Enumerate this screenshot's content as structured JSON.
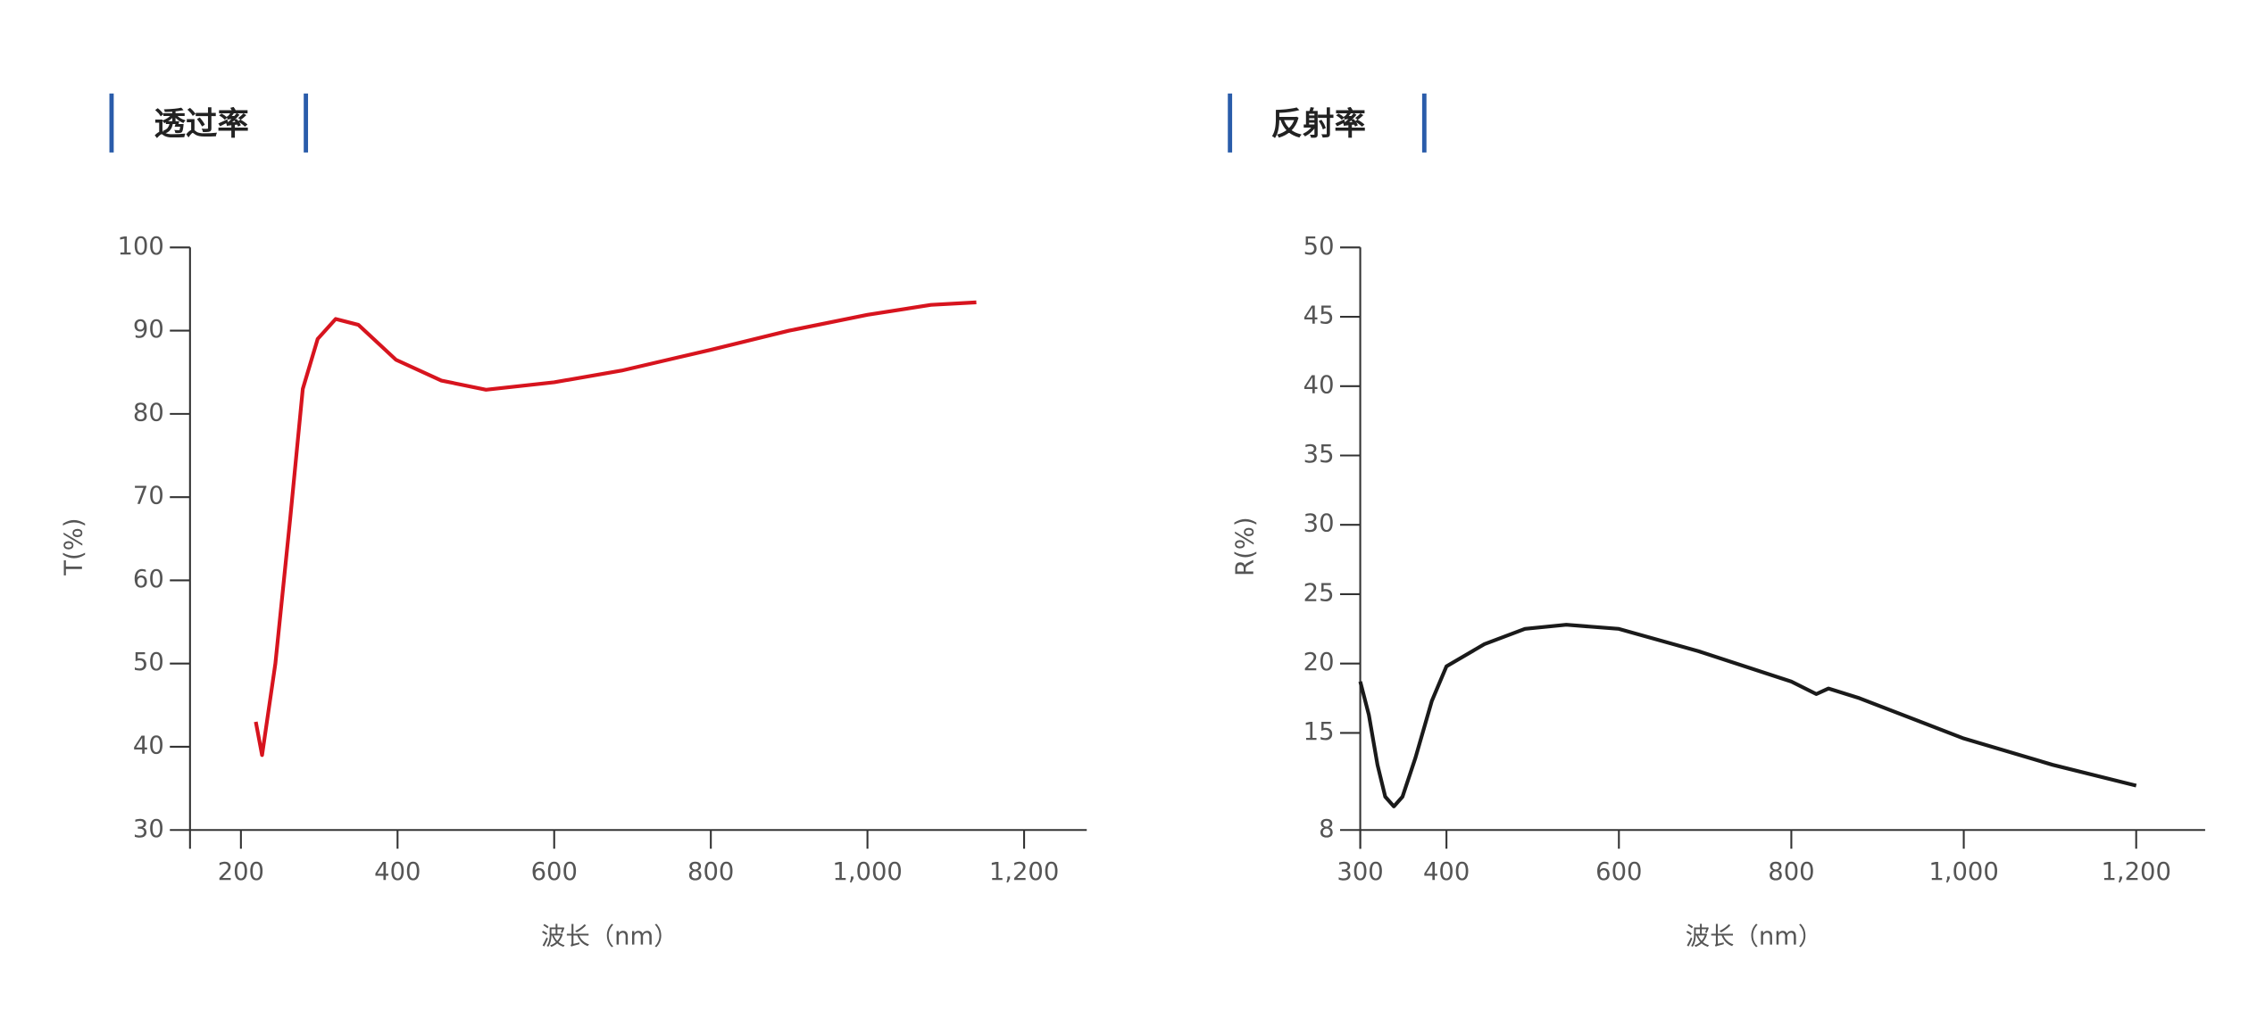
{
  "chart_data": [
    {
      "type": "line",
      "title": "透过率",
      "ylabel": "T(%)",
      "xlabel": "波长（nm）",
      "color": "#d7141e",
      "x": [
        219,
        227,
        244,
        263,
        279,
        298,
        321,
        350,
        398,
        456,
        513,
        600,
        686,
        800,
        900,
        1000,
        1081,
        1139
      ],
      "values": [
        43,
        39,
        50,
        67.5,
        83,
        89,
        91.4,
        90.7,
        86.5,
        84,
        82.9,
        83.8,
        85.2,
        87.7,
        90,
        91.9,
        93.1,
        93.4
      ],
      "xlim": [
        135,
        1280
      ],
      "ylim": [
        30,
        100
      ],
      "xticks": [
        200,
        400,
        600,
        800,
        {
          "value": 1000,
          "label": "1,000"
        },
        {
          "value": 1200,
          "label": "1,200"
        }
      ],
      "yticks": [
        30,
        40,
        50,
        60,
        70,
        80,
        90,
        100
      ]
    },
    {
      "type": "line",
      "title": "反射率",
      "ylabel": "R(%)",
      "xlabel": "波长（nm）",
      "color": "#1a1a1a",
      "x": [
        300,
        310,
        320,
        329,
        339,
        349,
        364,
        383,
        400,
        444,
        491,
        539,
        600,
        692,
        800,
        829,
        843,
        879,
        1000,
        1103,
        1200
      ],
      "values": [
        18.7,
        16.3,
        12.7,
        10.4,
        9.7,
        10.4,
        13.2,
        17.3,
        19.8,
        21.4,
        22.5,
        22.8,
        22.5,
        20.9,
        18.7,
        17.8,
        18.2,
        17.5,
        14.6,
        12.7,
        11.2
      ],
      "xlim": [
        300,
        1280
      ],
      "ylim": [
        8,
        50
      ],
      "xticks": [
        300,
        400,
        600,
        800,
        {
          "value": 1000,
          "label": "1,000"
        },
        {
          "value": 1200,
          "label": "1,200"
        }
      ],
      "yticks": [
        8,
        15,
        20,
        25,
        30,
        35,
        40,
        45,
        50
      ]
    }
  ]
}
